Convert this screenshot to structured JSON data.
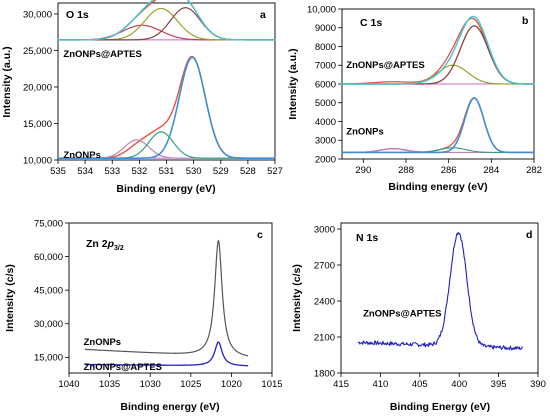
{
  "chart_data": [
    {
      "panel": "a",
      "type": "line",
      "title": "O 1s",
      "xlabel": "Binding energy (eV)",
      "ylabel": "Intensity (a.u.)",
      "xlim": [
        535,
        527
      ],
      "ylim": [
        10000,
        31500
      ],
      "x_ticks": [
        535,
        534,
        533,
        532,
        531,
        530,
        529,
        528,
        527
      ],
      "y_ticks": [
        10000,
        15000,
        20000,
        25000,
        30000
      ],
      "y_tick_labels": [
        "10,000",
        "15,000",
        "20,000",
        "25,000",
        "30,000"
      ],
      "annotations": [
        {
          "text": "ZnONPs@APTES",
          "x": 534.8,
          "y": 24100
        },
        {
          "text": "ZnONPs",
          "x": 534.8,
          "y": 10300
        }
      ],
      "background_groups": [
        {
          "name": "ZnONPs@APTES",
          "baseline": 26450
        },
        {
          "name": "ZnONPs",
          "baseline": 10250
        }
      ],
      "series": [
        {
          "group": "ZnONPs@APTES",
          "color": "#e8523f",
          "width": 1.4,
          "components": [
            [
              532.1,
              1800,
              0.55
            ],
            [
              531.2,
              4300,
              0.6
            ],
            [
              530.3,
              4400,
              0.55
            ]
          ]
        },
        {
          "group": "ZnONPs@APTES",
          "color": "#cc3d52",
          "width": 1.2,
          "components": [
            [
              531.9,
              2000,
              0.7
            ]
          ]
        },
        {
          "group": "ZnONPs@APTES",
          "color": "#9ba12e",
          "width": 1.2,
          "components": [
            [
              531.2,
              4300,
              0.6
            ]
          ]
        },
        {
          "group": "ZnONPs@APTES",
          "color": "#8a3f3f",
          "width": 1.2,
          "components": [
            [
              530.3,
              4400,
              0.55
            ]
          ]
        },
        {
          "group": "ZnONPs@APTES",
          "color": "#3ecad3",
          "width": 1.4,
          "components": [
            [
              532.0,
              1900,
              0.6
            ],
            [
              531.2,
              4200,
              0.6
            ],
            [
              530.3,
              4400,
              0.55
            ]
          ]
        },
        {
          "group": "ZnONPs",
          "color": "#e8523f",
          "width": 1.4,
          "components": [
            [
              532.0,
              1700,
              0.45
            ],
            [
              531.2,
              3200,
              0.45
            ],
            [
              530.05,
              13800,
              0.48
            ]
          ]
        },
        {
          "group": "ZnONPs",
          "color": "#c080c0",
          "width": 1.2,
          "components": [
            [
              532.1,
              2500,
              0.45
            ]
          ]
        },
        {
          "group": "ZnONPs",
          "color": "#2ea37a",
          "width": 1.2,
          "components": [
            [
              531.2,
              3600,
              0.45
            ]
          ]
        },
        {
          "group": "ZnONPs",
          "color": "#3f8fd8",
          "width": 1.6,
          "components": [
            [
              530.05,
              13800,
              0.48
            ]
          ]
        }
      ]
    },
    {
      "panel": "b",
      "type": "line",
      "title": "C 1s",
      "xlabel": "Binding energy (eV)",
      "ylabel": "Intensity (a.u.)",
      "xlim": [
        291,
        282
      ],
      "ylim": [
        2000,
        10000
      ],
      "x_ticks": [
        290,
        288,
        286,
        284,
        282
      ],
      "y_ticks": [
        2000,
        3000,
        4000,
        5000,
        6000,
        7000,
        8000,
        9000,
        10000
      ],
      "y_tick_labels": [
        "2000",
        "3000",
        "4000",
        "5000",
        "6000",
        "7000",
        "8000",
        "9000",
        "10,000"
      ],
      "annotations": [
        {
          "text": "ZnONPs@APTES",
          "x": 290.8,
          "y": 6850
        },
        {
          "text": "ZnONPs",
          "x": 290.8,
          "y": 3300
        }
      ],
      "background_groups": [
        {
          "name": "ZnONPs@APTES",
          "baseline": 6000
        },
        {
          "name": "ZnONPs",
          "baseline": 2350
        }
      ],
      "series": [
        {
          "group": "ZnONPs@APTES",
          "color": "#e8523f",
          "width": 1.3,
          "components": [
            [
              288.6,
              120,
              0.9
            ],
            [
              285.8,
              1000,
              0.7
            ],
            [
              284.8,
              3100,
              0.65
            ]
          ]
        },
        {
          "group": "ZnONPs@APTES",
          "color": "#9ba12e",
          "width": 1.2,
          "components": [
            [
              285.8,
              1000,
              0.7
            ]
          ]
        },
        {
          "group": "ZnONPs@APTES",
          "color": "#8a3f3f",
          "width": 1.3,
          "components": [
            [
              284.8,
              3100,
              0.65
            ]
          ]
        },
        {
          "group": "ZnONPs@APTES",
          "color": "#3ecad3",
          "width": 1.4,
          "components": [
            [
              285.9,
              650,
              0.7
            ],
            [
              284.8,
              3400,
              0.65
            ]
          ]
        },
        {
          "group": "ZnONPs",
          "color": "#e8523f",
          "width": 1.3,
          "components": [
            [
              288.6,
              200,
              0.6
            ],
            [
              285.8,
              250,
              0.6
            ],
            [
              284.8,
              2850,
              0.45
            ]
          ]
        },
        {
          "group": "ZnONPs",
          "color": "#c080c0",
          "width": 1.1,
          "components": [
            [
              288.6,
              200,
              0.6
            ]
          ]
        },
        {
          "group": "ZnONPs",
          "color": "#2ea37a",
          "width": 1.1,
          "components": [
            [
              285.8,
              250,
              0.6
            ]
          ]
        },
        {
          "group": "ZnONPs",
          "color": "#3f8fd8",
          "width": 1.6,
          "components": [
            [
              284.8,
              2900,
              0.45
            ]
          ]
        }
      ]
    },
    {
      "panel": "c",
      "type": "line",
      "title": "Zn 2p3/2",
      "title_main": "Zn 2",
      "title_italic": "p",
      "title_sub": "3/2",
      "xlabel": "Binding energy (eV)",
      "ylabel": "Intensity (c/s)",
      "xlim": [
        1040,
        1015
      ],
      "ylim": [
        8000,
        75000
      ],
      "x_ticks": [
        1040,
        1035,
        1030,
        1025,
        1020,
        1015
      ],
      "y_ticks": [
        15000,
        30000,
        45000,
        60000,
        75000
      ],
      "y_tick_labels": [
        "15,000",
        "30,000",
        "45,000",
        "60,000",
        "75,000"
      ],
      "annotations": [
        {
          "text": "ZnONPs",
          "x": 1038.2,
          "y": 20500
        },
        {
          "text": "ZnONPs@APTES",
          "x": 1038.2,
          "y": 9300
        }
      ],
      "series": [
        {
          "name": "ZnONPs",
          "color": "#555555",
          "width": 1.2,
          "x_start": 1038,
          "x_end": 1018,
          "baseline": [
            18500,
            14500
          ],
          "peak": [
            1021.6,
            52000,
            0.55
          ]
        },
        {
          "name": "ZnONPs@APTES",
          "color": "#2020c8",
          "width": 1.3,
          "x_start": 1038,
          "x_end": 1018,
          "baseline": [
            11800,
            11000
          ],
          "peak": [
            1021.6,
            10700,
            0.55
          ]
        }
      ]
    },
    {
      "panel": "d",
      "type": "line",
      "title": "N 1s",
      "xlabel": "Binding Energy (eV)",
      "ylabel": "Intensity (c/s)",
      "xlim": [
        415,
        390
      ],
      "ylim": [
        1800,
        3050
      ],
      "x_ticks": [
        415,
        410,
        405,
        400,
        395,
        390
      ],
      "y_ticks": [
        1800,
        2100,
        2400,
        2700,
        3000
      ],
      "y_tick_labels": [
        "1800",
        "2100",
        "2400",
        "2700",
        "3000"
      ],
      "annotations": [
        {
          "text": "ZnONPs@APTES",
          "x": 412.2,
          "y": 2270
        }
      ],
      "series": [
        {
          "name": "ZnONPs@APTES",
          "color": "#2020c8",
          "width": 1.1,
          "x_start": 412.8,
          "x_end": 392,
          "baseline": [
            2055,
            2005
          ],
          "peak": [
            400.1,
            950,
            1.05
          ]
        }
      ]
    }
  ]
}
